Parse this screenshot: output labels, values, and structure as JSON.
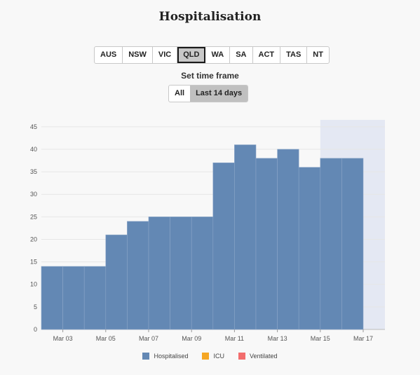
{
  "title": "Hospitalisation",
  "regions": [
    "AUS",
    "NSW",
    "VIC",
    "QLD",
    "WA",
    "SA",
    "ACT",
    "TAS",
    "NT"
  ],
  "active_region": "QLD",
  "timeframe": {
    "label": "Set time frame",
    "options": [
      "All",
      "Last 14 days"
    ],
    "active": "Last 14 days"
  },
  "legend": [
    {
      "name": "Hospitalised",
      "color": "#6388b4"
    },
    {
      "name": "ICU",
      "color": "#f5a623"
    },
    {
      "name": "Ventilated",
      "color": "#f26d6d"
    }
  ],
  "chart_data": {
    "type": "bar",
    "title": "",
    "xlabel": "",
    "ylabel": "",
    "categories": [
      "Mar 02",
      "Mar 03",
      "Mar 04",
      "Mar 05",
      "Mar 06",
      "Mar 07",
      "Mar 08",
      "Mar 09",
      "Mar 10",
      "Mar 11",
      "Mar 12",
      "Mar 13",
      "Mar 14",
      "Mar 15",
      "Mar 16"
    ],
    "x_tick_labels": [
      "Mar 03",
      "Mar 05",
      "Mar 07",
      "Mar 09",
      "Mar 11",
      "Mar 13",
      "Mar 15",
      "Mar 17"
    ],
    "series": [
      {
        "name": "Hospitalised",
        "values": [
          14,
          14,
          14,
          21,
          24,
          25,
          25,
          25,
          37,
          41,
          38,
          40,
          36,
          38,
          38
        ]
      }
    ],
    "y_ticks": [
      0,
      5,
      10,
      15,
      20,
      25,
      30,
      35,
      40,
      45
    ],
    "ylim": [
      0,
      47
    ],
    "grid": true,
    "shaded_region_from": "Mar 15",
    "bar_color": "#6388b4",
    "shade_color": "#e4e8f3"
  }
}
